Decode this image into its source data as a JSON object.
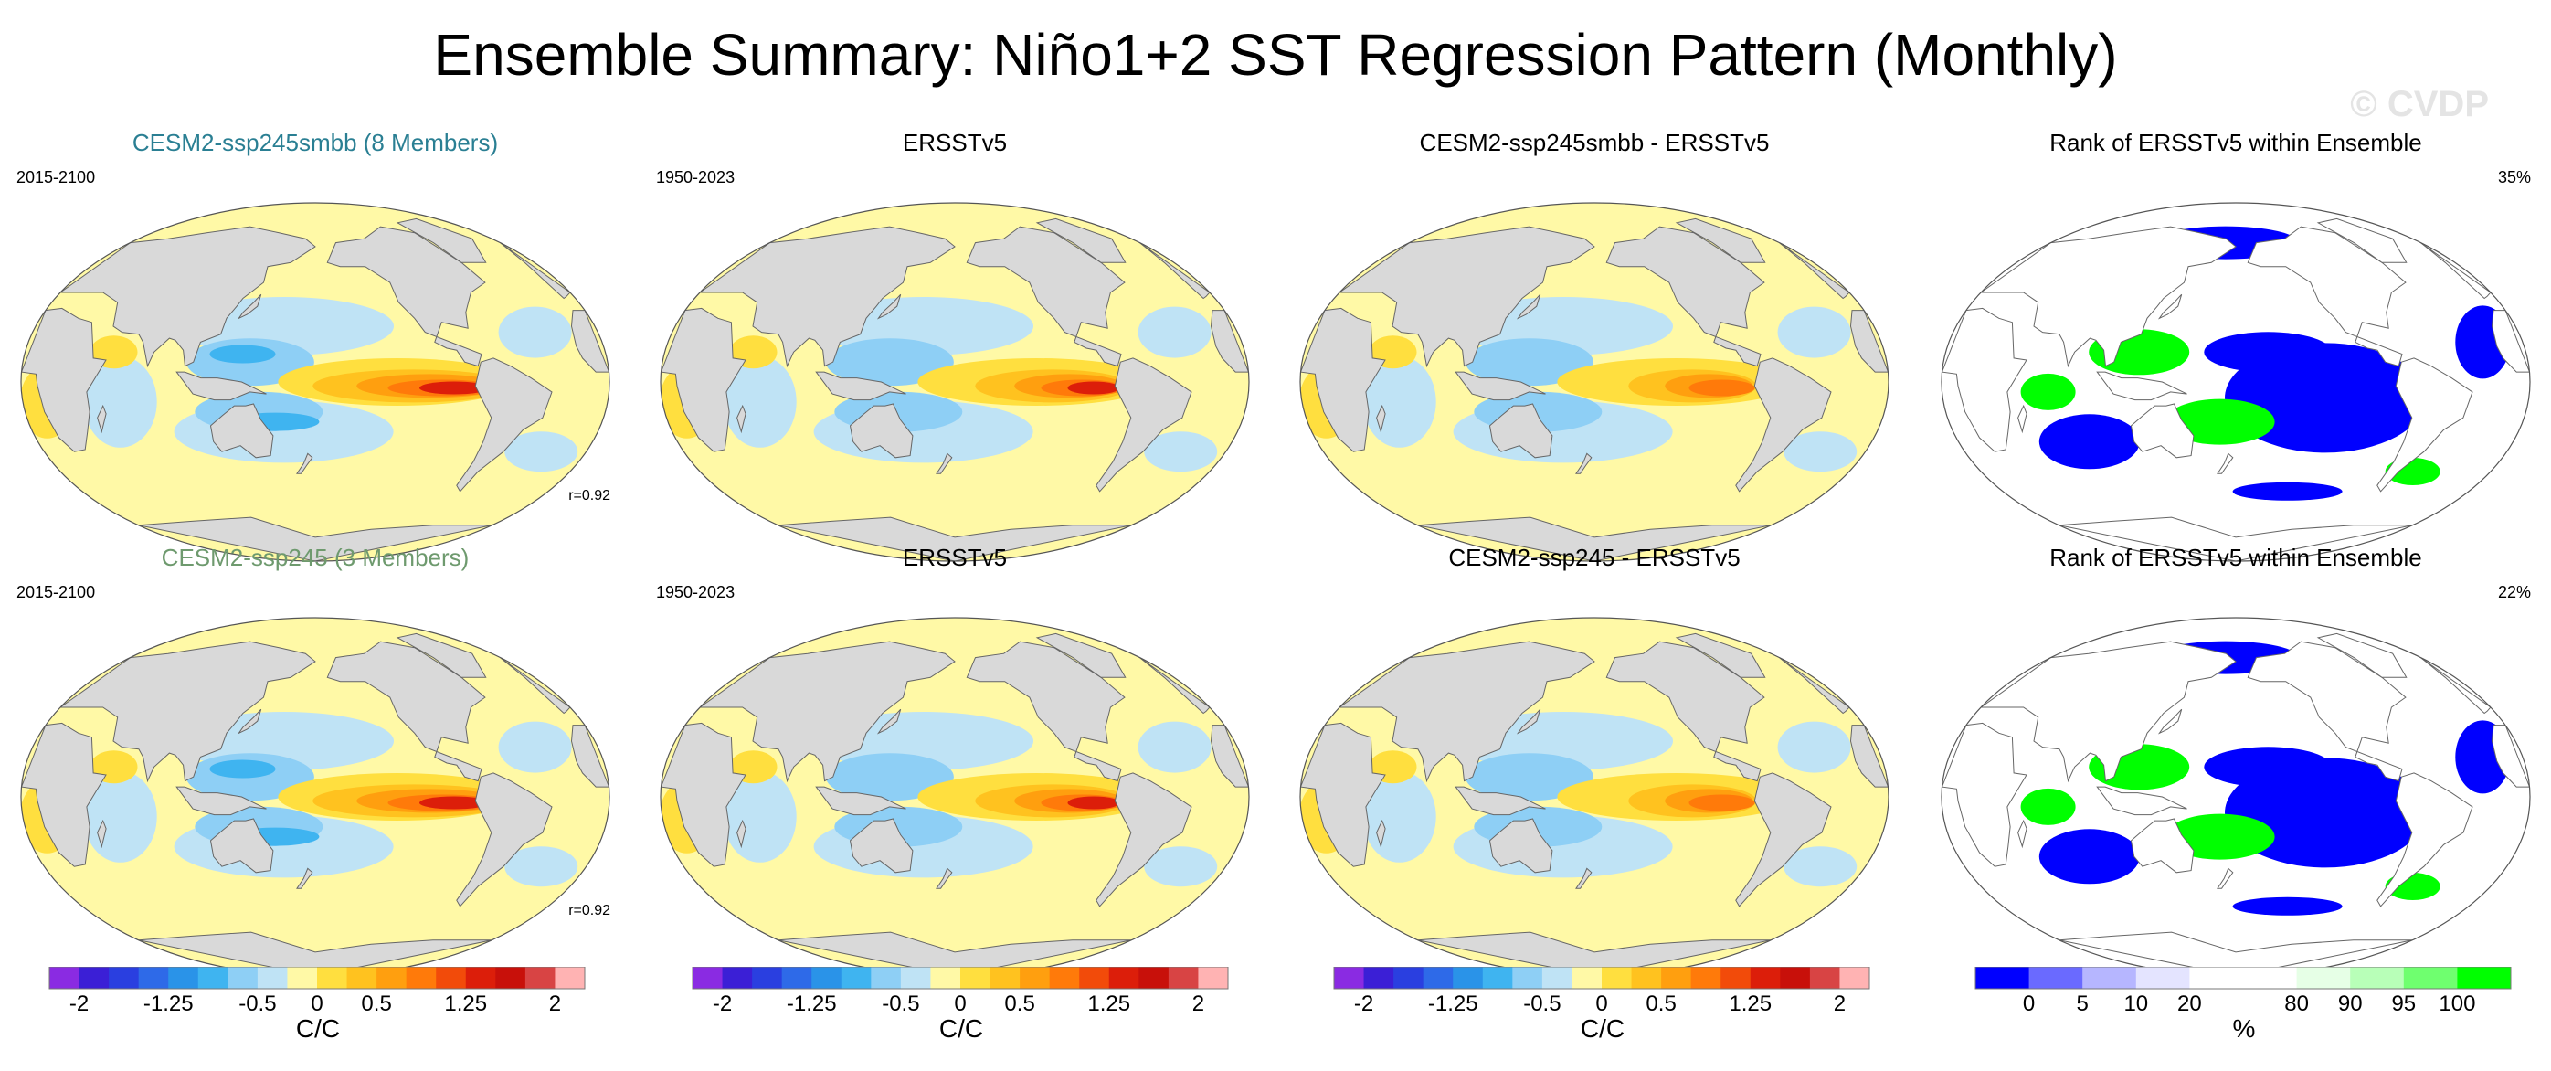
{
  "title": "Ensemble Summary: Niño1+2 SST Regression Pattern (Monthly)",
  "watermark": "© CVDP",
  "rows": [
    {
      "ensemble": {
        "title": "CESM2-ssp245smbb (8 Members)",
        "period": "2015-2100",
        "corr": "r=0.92"
      },
      "obs": {
        "title": "ERSSTv5",
        "period": "1950-2023"
      },
      "diff": {
        "title": "CESM2-ssp245smbb - ERSSTv5"
      },
      "rank": {
        "title": "Rank of ERSSTv5 within Ensemble",
        "pct": "35%"
      }
    },
    {
      "ensemble": {
        "title": "CESM2-ssp245 (3 Members)",
        "period": "2015-2100",
        "corr": "r=0.92"
      },
      "obs": {
        "title": "ERSSTv5",
        "period": "1950-2023"
      },
      "diff": {
        "title": "CESM2-ssp245 - ERSSTv5"
      },
      "rank": {
        "title": "Rank of ERSSTv5 within Ensemble",
        "pct": "22%"
      }
    }
  ],
  "colorbar_sst": {
    "units": "C/C",
    "colors": [
      "#8a2be2",
      "#3b1fd6",
      "#2a3fe0",
      "#2e6ae8",
      "#2a93e8",
      "#3fb4f0",
      "#8ecff5",
      "#bfe3f5",
      "#fff9a6",
      "#ffdf3f",
      "#ffc21f",
      "#ff9f0f",
      "#ff7a0a",
      "#f24b0a",
      "#dc1e0a",
      "#c8100a",
      "#d84444",
      "#ffb3b3"
    ],
    "ticks": [
      "-2",
      "-1.25",
      "-0.5",
      "0",
      "0.5",
      "1.25",
      "2"
    ],
    "tick_positions": [
      1,
      4,
      7,
      9,
      11,
      14,
      17
    ]
  },
  "colorbar_rank": {
    "units": "%",
    "colors": [
      "#0000ff",
      "#6a6aff",
      "#b6b6ff",
      "#e4e4ff",
      "#ffffff",
      "#ffffff",
      "#e6ffe6",
      "#b8ffb8",
      "#6fff6f",
      "#00ff00"
    ],
    "ticks": [
      "0",
      "5",
      "10",
      "20",
      "80",
      "90",
      "95",
      "100"
    ],
    "tick_positions": [
      1,
      2,
      3,
      4,
      6,
      7,
      8,
      9
    ]
  },
  "chart_data": [
    {
      "type": "heatmap",
      "title": "CESM2-ssp245smbb (8 Members)",
      "projection": "global Robinson map",
      "period": "2015-2100",
      "annotation": "r=0.92",
      "units": "C/C",
      "range": [
        -2,
        2
      ],
      "feature": "strong warm tongue along equatorial eastern Pacific"
    },
    {
      "type": "heatmap",
      "title": "ERSSTv5",
      "projection": "global Robinson map",
      "period": "1950-2023",
      "units": "C/C",
      "range": [
        -2,
        2
      ]
    },
    {
      "type": "heatmap",
      "title": "CESM2-ssp245smbb - ERSSTv5",
      "projection": "global Robinson map",
      "units": "C/C",
      "range": [
        -2,
        2
      ]
    },
    {
      "type": "heatmap",
      "title": "Rank of ERSSTv5 within Ensemble",
      "projection": "global Robinson map",
      "annotation": "35%",
      "units": "%",
      "levels": [
        0,
        5,
        10,
        20,
        80,
        90,
        95,
        100
      ]
    },
    {
      "type": "heatmap",
      "title": "CESM2-ssp245 (3 Members)",
      "projection": "global Robinson map",
      "period": "2015-2100",
      "annotation": "r=0.92",
      "units": "C/C",
      "range": [
        -2,
        2
      ]
    },
    {
      "type": "heatmap",
      "title": "ERSSTv5",
      "projection": "global Robinson map",
      "period": "1950-2023",
      "units": "C/C",
      "range": [
        -2,
        2
      ]
    },
    {
      "type": "heatmap",
      "title": "CESM2-ssp245 - ERSSTv5",
      "projection": "global Robinson map",
      "units": "C/C",
      "range": [
        -2,
        2
      ]
    },
    {
      "type": "heatmap",
      "title": "Rank of ERSSTv5 within Ensemble",
      "projection": "global Robinson map",
      "annotation": "22%",
      "units": "%",
      "levels": [
        0,
        5,
        10,
        20,
        80,
        90,
        95,
        100
      ]
    }
  ]
}
